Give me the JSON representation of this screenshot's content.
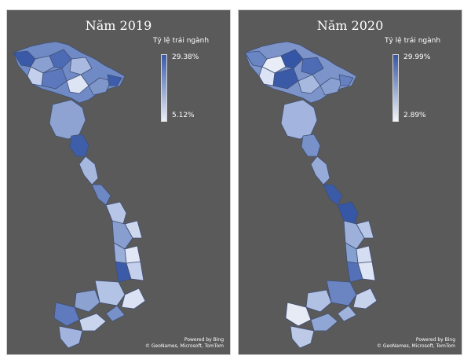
{
  "panels": [
    {
      "title": "Năm 2019",
      "legend_title": "Tỷ lệ trái ngành",
      "legend_max": "29.38%",
      "legend_min": "5.12%",
      "attribution_line1": "Powered by Bing",
      "attribution_line2": "© GeoNames, Microsoft, TomTom"
    },
    {
      "title": "Năm 2020",
      "legend_title": "Tỷ lệ trái ngành",
      "legend_max": "29.99%",
      "legend_min": "2.89%",
      "attribution_line1": "Powered by Bing",
      "attribution_line2": "© GeoNames, Microsoft, TomTom"
    }
  ],
  "colors": {
    "panel_bg": "#5a5a5a",
    "scale_high": "#3a5aa8",
    "scale_low": "#e9eef8"
  }
}
